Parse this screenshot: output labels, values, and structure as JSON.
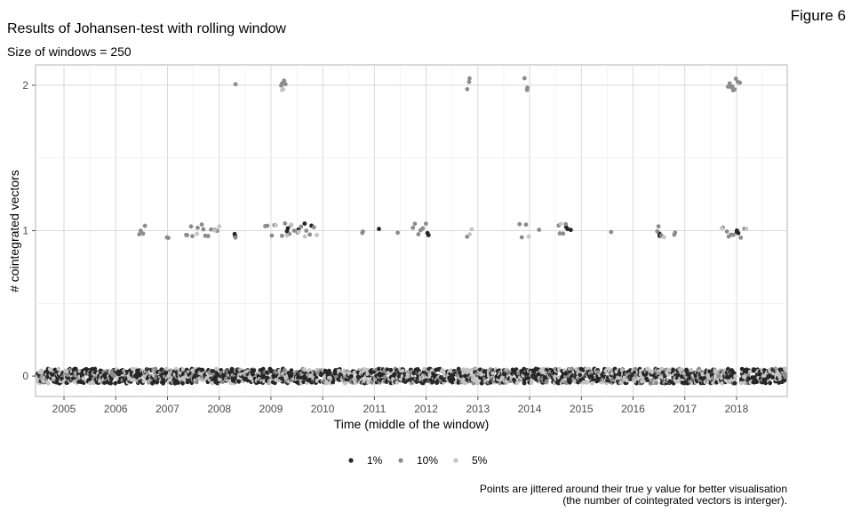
{
  "figure_label": "Figure 6",
  "caption_lines": [
    "Points are jittered around their true y value for better visualisation",
    "(the number of cointegrated vectors is interger)."
  ],
  "chart_data": {
    "type": "scatter",
    "title": "Results of Johansen-test with rolling window",
    "subtitle": "Size of windows = 250",
    "xlabel": "Time (middle of the window)",
    "ylabel": "# cointegrated vectors",
    "xlim": [
      2004.45,
      2018.98
    ],
    "ylim": [
      -0.14,
      2.14
    ],
    "x_ticks": [
      2005,
      2006,
      2007,
      2008,
      2009,
      2010,
      2011,
      2012,
      2013,
      2014,
      2015,
      2016,
      2017,
      2018
    ],
    "x_tick_labels": [
      "2005",
      "2006",
      "2007",
      "2008",
      "2009",
      "2010",
      "2011",
      "2012",
      "2013",
      "2014",
      "2015",
      "2016",
      "2017",
      "2018"
    ],
    "y_ticks": [
      0,
      1,
      2
    ],
    "y_tick_labels": [
      "0",
      "1",
      "2"
    ],
    "grid": true,
    "legend_position": "bottom",
    "jitter": 0.05,
    "series": [
      {
        "name": "1%",
        "color": "#262626",
        "y0_range": [
          2004.48,
          2018.96
        ],
        "y0_gap": [
          2017.98,
          2018.08
        ],
        "y1_x": [
          2008.28,
          2008.3,
          2009.3,
          2009.33,
          2009.38,
          2009.55,
          2009.65,
          2009.8,
          2011.1,
          2012.02,
          2012.06,
          2014.72,
          2014.75,
          2014.78,
          2016.5,
          2016.52,
          2018.0,
          2018.02,
          2018.04
        ]
      },
      {
        "name": "10%",
        "color": "#8c8c8c",
        "y2_x": [
          2008.3,
          2009.2,
          2009.22,
          2009.25,
          2009.27,
          2012.8,
          2012.82,
          2012.84,
          2013.92,
          2013.95,
          2013.97,
          2017.85,
          2017.87,
          2017.9,
          2017.92,
          2017.95,
          2017.97,
          2018.0,
          2018.02,
          2018.05
        ],
        "y1_x": [
          2006.45,
          2006.48,
          2006.52,
          2006.55,
          2007.0,
          2007.02,
          2007.35,
          2007.4,
          2007.45,
          2007.5,
          2007.6,
          2007.65,
          2007.7,
          2007.75,
          2007.8,
          2007.85,
          2007.9,
          2007.95,
          2008.3,
          2008.9,
          2008.95,
          2009.0,
          2009.05,
          2009.2,
          2009.28,
          2009.35,
          2009.45,
          2009.5,
          2009.6,
          2009.7,
          2009.75,
          2009.85,
          2010.75,
          2010.78,
          2011.45,
          2011.75,
          2011.8,
          2011.85,
          2011.9,
          2011.95,
          2012.0,
          2012.8,
          2013.8,
          2013.85,
          2013.92,
          2014.2,
          2014.55,
          2014.6,
          2014.65,
          2014.7,
          2015.58,
          2016.45,
          2016.48,
          2016.55,
          2016.8,
          2016.82,
          2017.75,
          2017.8,
          2017.85,
          2017.9,
          2017.95,
          2018.1,
          2018.15
        ]
      },
      {
        "name": "5%",
        "color": "#c4c4c4",
        "y2_x": [
          2009.22,
          2009.25
        ],
        "y1_x": [
          2007.55,
          2007.9,
          2008.0,
          2009.1,
          2009.3,
          2009.4,
          2009.55,
          2009.65,
          2009.9,
          2012.85,
          2012.88,
          2014.0,
          2014.62,
          2016.6,
          2017.7,
          2018.2
        ]
      }
    ]
  }
}
